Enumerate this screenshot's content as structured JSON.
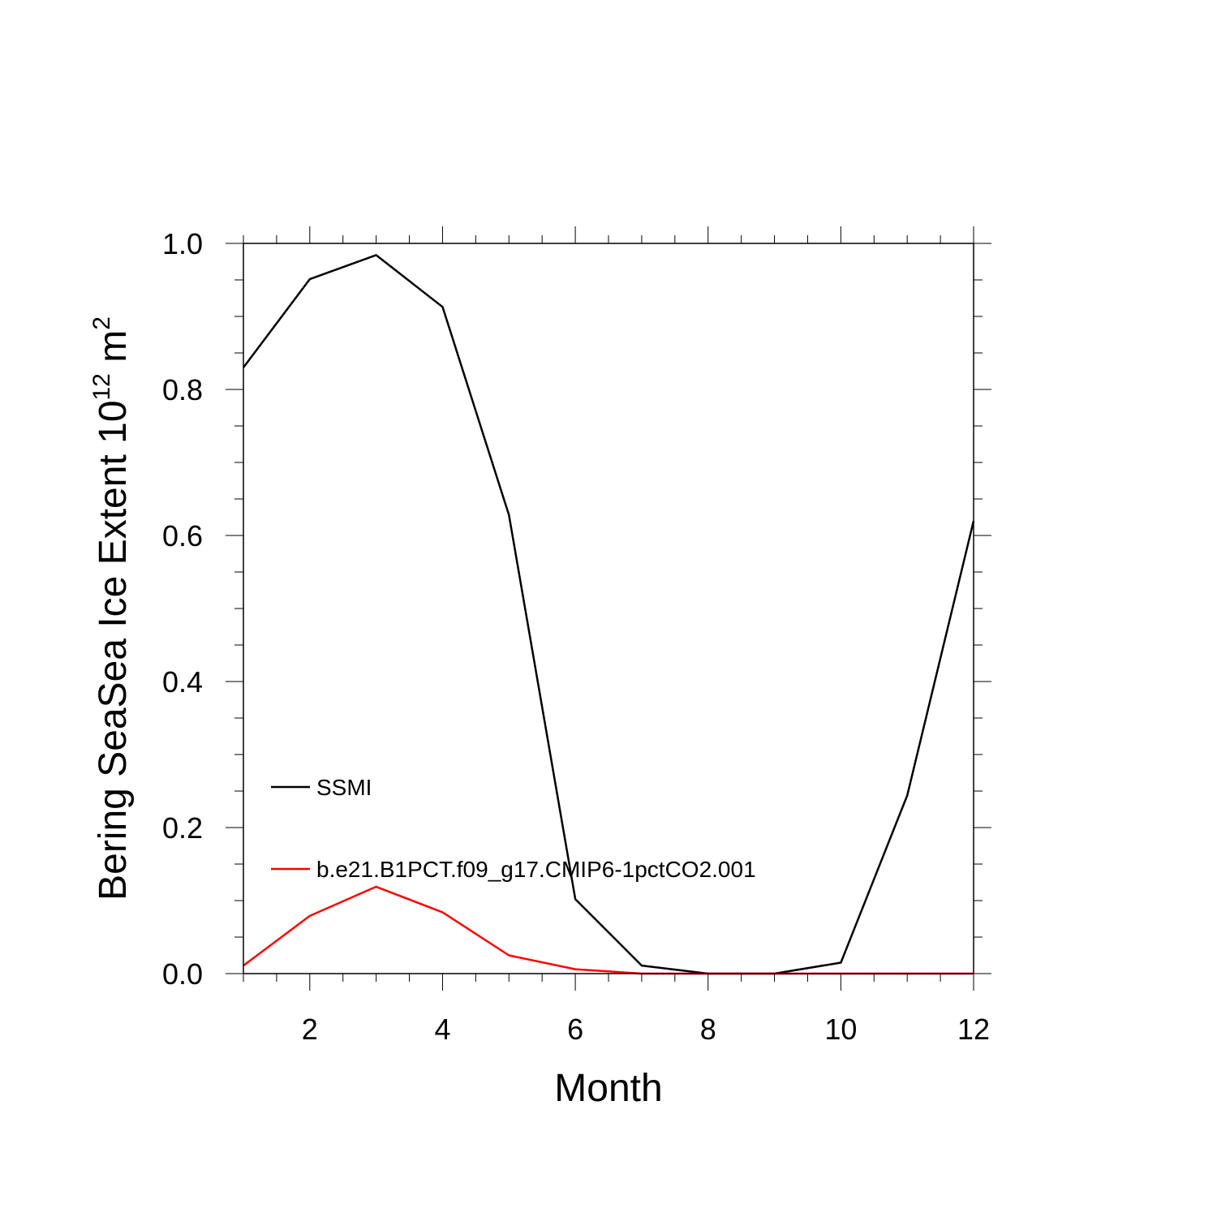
{
  "chart_data": {
    "type": "line",
    "title": "",
    "xlabel": "Month",
    "ylabel": {
      "prefix": "Bering SeaSea Ice Extent 10",
      "exponent": "12",
      "unit": " m",
      "unit_exponent": "2"
    },
    "xlim": [
      1,
      12
    ],
    "ylim": [
      0.0,
      1.0
    ],
    "x_ticks": [
      2,
      4,
      6,
      8,
      10,
      12
    ],
    "x_tick_labels": [
      "2",
      "4",
      "6",
      "8",
      "10",
      "12"
    ],
    "y_ticks": [
      0.0,
      0.2,
      0.4,
      0.6,
      0.8,
      1.0
    ],
    "y_tick_labels": [
      "0.0",
      "0.2",
      "0.4",
      "0.6",
      "0.8",
      "1.0"
    ],
    "grid": false,
    "legend_position": "lower-left",
    "x": [
      1,
      2,
      3,
      4,
      5,
      6,
      7,
      8,
      9,
      10,
      11,
      12
    ],
    "series": [
      {
        "name": "SSMI",
        "color": "#000000",
        "values": [
          0.83,
          0.951,
          0.984,
          0.913,
          0.628,
          0.102,
          0.011,
          0.0,
          0.0,
          0.015,
          0.244,
          0.62
        ]
      },
      {
        "name": "b.e21.B1PCT.f09_g17.CMIP6-1pctCO2.001",
        "color": "#ff0000",
        "values": [
          0.011,
          0.079,
          0.119,
          0.084,
          0.025,
          0.006,
          0.0,
          0.0,
          0.0,
          0.0,
          0.0,
          0.0
        ]
      }
    ]
  }
}
